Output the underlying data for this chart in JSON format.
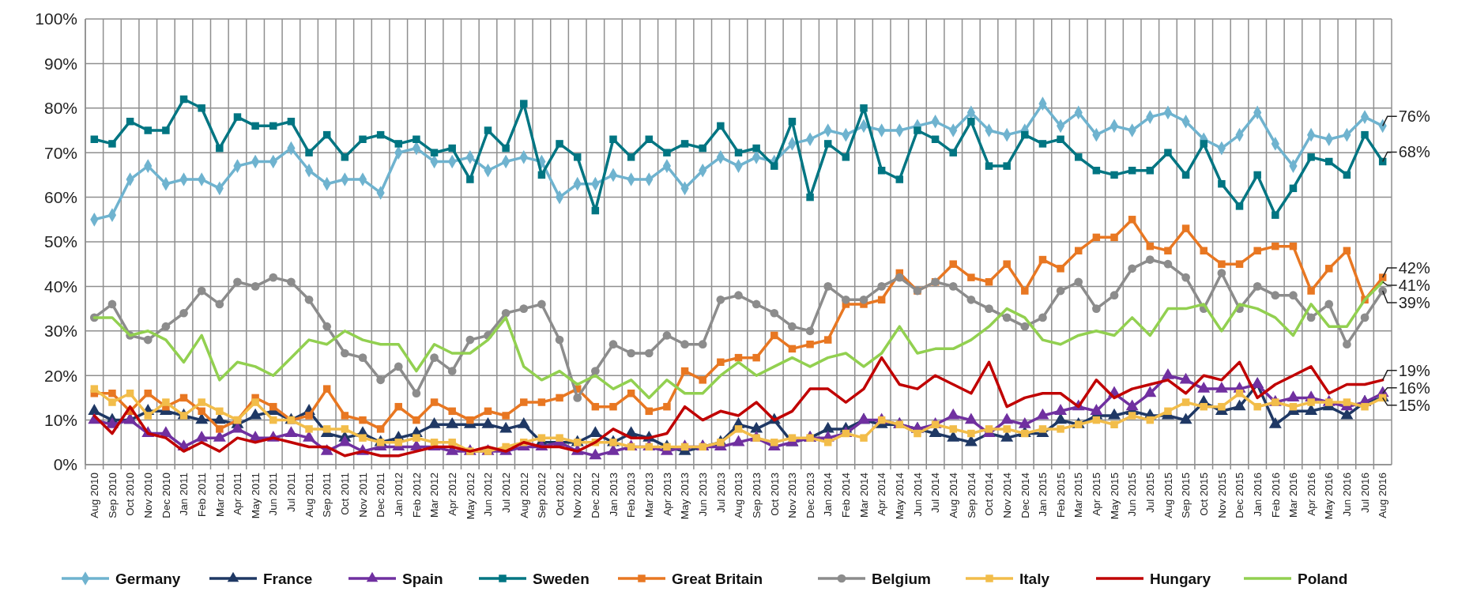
{
  "chart_data": {
    "type": "line",
    "categories": [
      "Aug 2010",
      "Sep 2010",
      "Oct 2010",
      "Nov 2010",
      "Dec 2010",
      "Jan 2011",
      "Feb 2011",
      "Mar 2011",
      "Apr 2011",
      "May 2011",
      "Jun 2011",
      "Jul 2011",
      "Aug 2011",
      "Sep 2011",
      "Oct 2011",
      "Nov 2011",
      "Dec 2011",
      "Jan 2012",
      "Feb 2012",
      "Mar 2012",
      "Apr 2012",
      "May 2012",
      "Jun 2012",
      "Jul 2012",
      "Aug 2012",
      "Sep 2012",
      "Oct 2012",
      "Nov 2012",
      "Dec 2012",
      "Jan 2013",
      "Feb 2013",
      "Mar 2013",
      "Apr 2013",
      "May 2013",
      "Jun 2013",
      "Jul 2013",
      "Aug 2013",
      "Sep 2013",
      "Oct 2013",
      "Nov 2013",
      "Dec 2013",
      "Jan 2014",
      "Feb 2014",
      "Mar 2014",
      "Apr 2014",
      "May 2014",
      "Jun 2014",
      "Jul 2014",
      "Aug 2014",
      "Sep 2014",
      "Oct 2014",
      "Nov 2014",
      "Dec 2014",
      "Jan 2015",
      "Feb 2015",
      "Mar 2015",
      "Apr 2015",
      "May 2015",
      "Jun 2015",
      "Jul 2015",
      "Aug 2015",
      "Sep 2015",
      "Oct 2015",
      "Nov 2015",
      "Dec 2015",
      "Jan 2016",
      "Feb 2016",
      "Mar 2016",
      "Apr 2016",
      "May 2016",
      "Jun 2016",
      "Jul 2016",
      "Aug 2016"
    ],
    "series": [
      {
        "name": "Germany",
        "color": "#6fb3cf",
        "marker": "diamond",
        "values": [
          55,
          56,
          64,
          67,
          63,
          64,
          64,
          62,
          67,
          68,
          68,
          71,
          66,
          63,
          64,
          64,
          61,
          70,
          71,
          68,
          68,
          69,
          66,
          68,
          69,
          68,
          60,
          63,
          63,
          65,
          64,
          64,
          67,
          62,
          66,
          69,
          67,
          69,
          68,
          72,
          73,
          75,
          74,
          76,
          75,
          75,
          76,
          77,
          75,
          79,
          75,
          74,
          75,
          81,
          76,
          79,
          74,
          76,
          75,
          78,
          79,
          77,
          73,
          71,
          74,
          79,
          72,
          67,
          74,
          73,
          74,
          78,
          76
        ]
      },
      {
        "name": "France",
        "color": "#1f3864",
        "marker": "triangle",
        "values": [
          12,
          10,
          10,
          12,
          12,
          11,
          10,
          10,
          9,
          11,
          12,
          10,
          12,
          7,
          6,
          7,
          5,
          6,
          7,
          9,
          9,
          9,
          9,
          8,
          9,
          5,
          5,
          5,
          7,
          5,
          7,
          6,
          4,
          3,
          4,
          5,
          9,
          8,
          10,
          5,
          6,
          8,
          8,
          10,
          9,
          9,
          8,
          7,
          6,
          5,
          7,
          6,
          7,
          7,
          10,
          9,
          11,
          11,
          12,
          11,
          11,
          10,
          14,
          12,
          13,
          18,
          9,
          12,
          12,
          13,
          11,
          14,
          15
        ]
      },
      {
        "name": "Spain",
        "color": "#7030a0",
        "marker": "triangle",
        "values": [
          10,
          9,
          10,
          7,
          7,
          4,
          6,
          6,
          8,
          6,
          6,
          7,
          6,
          3,
          5,
          3,
          4,
          4,
          4,
          4,
          3,
          3,
          3,
          3,
          4,
          4,
          5,
          3,
          2,
          3,
          4,
          4,
          3,
          4,
          4,
          4,
          5,
          6,
          4,
          5,
          6,
          6,
          7,
          10,
          10,
          9,
          8,
          9,
          11,
          10,
          7,
          10,
          9,
          11,
          12,
          13,
          12,
          16,
          13,
          16,
          20,
          19,
          17,
          17,
          17,
          18,
          14,
          15,
          15,
          14,
          13,
          14,
          16
        ]
      },
      {
        "name": "Sweden",
        "color": "#007582",
        "marker": "square",
        "values": [
          73,
          72,
          77,
          75,
          75,
          82,
          80,
          71,
          78,
          76,
          76,
          77,
          70,
          74,
          69,
          73,
          74,
          72,
          73,
          70,
          71,
          64,
          75,
          71,
          81,
          65,
          72,
          69,
          57,
          73,
          69,
          73,
          70,
          72,
          71,
          76,
          70,
          71,
          67,
          77,
          60,
          72,
          69,
          80,
          66,
          64,
          75,
          73,
          70,
          77,
          67,
          67,
          74,
          72,
          73,
          69,
          66,
          65,
          66,
          66,
          70,
          65,
          72,
          63,
          58,
          65,
          56,
          62,
          69,
          68,
          65,
          74,
          68
        ]
      },
      {
        "name": "Great Britain",
        "color": "#e87722",
        "marker": "square",
        "values": [
          16,
          16,
          12,
          16,
          13,
          15,
          12,
          8,
          10,
          15,
          13,
          10,
          11,
          17,
          11,
          10,
          8,
          13,
          10,
          14,
          12,
          10,
          12,
          11,
          14,
          14,
          15,
          17,
          13,
          13,
          16,
          12,
          13,
          21,
          19,
          23,
          24,
          24,
          29,
          26,
          27,
          28,
          36,
          36,
          37,
          43,
          39,
          41,
          45,
          42,
          41,
          45,
          39,
          46,
          44,
          48,
          51,
          51,
          55,
          49,
          48,
          53,
          48,
          45,
          45,
          48,
          49,
          49,
          39,
          44,
          48,
          37,
          42
        ]
      },
      {
        "name": "Belgium",
        "color": "#8c8c8c",
        "marker": "circle",
        "values": [
          33,
          36,
          29,
          28,
          31,
          34,
          39,
          36,
          41,
          40,
          42,
          41,
          37,
          31,
          25,
          24,
          19,
          22,
          16,
          24,
          21,
          28,
          29,
          34,
          35,
          36,
          28,
          15,
          21,
          27,
          25,
          25,
          29,
          27,
          27,
          37,
          38,
          36,
          34,
          31,
          30,
          40,
          37,
          37,
          40,
          42,
          39,
          41,
          40,
          37,
          35,
          33,
          31,
          33,
          39,
          41,
          35,
          38,
          44,
          46,
          45,
          42,
          35,
          43,
          35,
          40,
          38,
          38,
          33,
          36,
          27,
          33,
          39
        ]
      },
      {
        "name": "Italy",
        "color": "#f2bd4a",
        "marker": "square",
        "values": [
          17,
          14,
          16,
          11,
          14,
          11,
          14,
          12,
          10,
          14,
          10,
          10,
          8,
          8,
          8,
          6,
          5,
          5,
          6,
          5,
          5,
          3,
          3,
          4,
          5,
          6,
          6,
          5,
          5,
          5,
          4,
          4,
          4,
          4,
          4,
          5,
          8,
          6,
          5,
          6,
          6,
          5,
          7,
          6,
          10,
          9,
          7,
          9,
          8,
          7,
          8,
          8,
          7,
          8,
          8,
          9,
          10,
          9,
          11,
          10,
          12,
          14,
          13,
          13,
          16,
          13,
          14,
          13,
          14,
          14,
          14,
          13,
          15
        ]
      },
      {
        "name": "Hungary",
        "color": "#c00000",
        "marker": "none",
        "values": [
          11,
          7,
          13,
          7,
          6,
          3,
          5,
          3,
          6,
          5,
          6,
          5,
          4,
          4,
          2,
          3,
          2,
          2,
          3,
          4,
          4,
          3,
          4,
          3,
          5,
          4,
          4,
          3,
          5,
          8,
          6,
          6,
          7,
          13,
          10,
          12,
          11,
          14,
          10,
          12,
          17,
          17,
          14,
          17,
          24,
          18,
          17,
          20,
          18,
          16,
          23,
          13,
          15,
          16,
          16,
          13,
          19,
          15,
          17,
          18,
          19,
          16,
          20,
          19,
          23,
          15,
          18,
          20,
          22,
          16,
          18,
          18,
          19
        ]
      },
      {
        "name": "Poland",
        "color": "#92d050",
        "marker": "none",
        "values": [
          33,
          33,
          29,
          30,
          28,
          23,
          29,
          19,
          23,
          22,
          20,
          24,
          28,
          27,
          30,
          28,
          27,
          27,
          21,
          27,
          25,
          25,
          28,
          33,
          22,
          19,
          21,
          18,
          20,
          17,
          19,
          15,
          19,
          16,
          16,
          20,
          23,
          20,
          22,
          24,
          22,
          24,
          25,
          22,
          25,
          31,
          25,
          26,
          26,
          28,
          31,
          35,
          33,
          28,
          27,
          29,
          30,
          29,
          33,
          29,
          35,
          35,
          36,
          30,
          36,
          35,
          33,
          29,
          36,
          31,
          31,
          37,
          41
        ]
      }
    ],
    "ylim": [
      0,
      100
    ],
    "yticks": [
      {
        "value": 0,
        "label": "0%"
      },
      {
        "value": 10,
        "label": "10%"
      },
      {
        "value": 20,
        "label": "20%"
      },
      {
        "value": 30,
        "label": "30%"
      },
      {
        "value": 40,
        "label": "40%"
      },
      {
        "value": 50,
        "label": "50%"
      },
      {
        "value": 60,
        "label": "60%"
      },
      {
        "value": 70,
        "label": "70%"
      },
      {
        "value": 80,
        "label": "80%"
      },
      {
        "value": 90,
        "label": "90%"
      },
      {
        "value": 100,
        "label": "100%"
      }
    ],
    "annotations": [
      {
        "text": "76%",
        "x": "Aug 2016",
        "y": 76
      },
      {
        "text": "68%",
        "x": "Aug 2016",
        "y": 68
      },
      {
        "text": "42%",
        "x": "Aug 2016",
        "y": 42
      },
      {
        "text": "41%",
        "x": "Aug 2016",
        "y": 41
      },
      {
        "text": "39%",
        "x": "Aug 2016",
        "y": 39
      },
      {
        "text": "19%",
        "x": "Aug 2016",
        "y": 19
      },
      {
        "text": "16%",
        "x": "Aug 2016",
        "y": 16
      },
      {
        "text": "15%",
        "x": "Aug 2016",
        "y": 15
      }
    ],
    "grid": true,
    "legend": "bottom",
    "line_style": "solid"
  }
}
